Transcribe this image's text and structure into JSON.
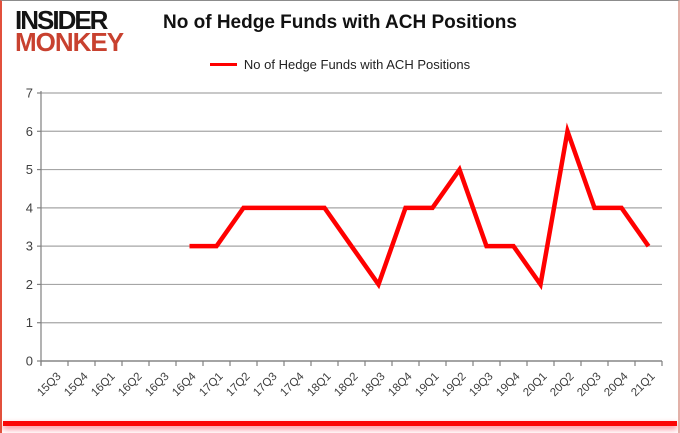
{
  "logo": {
    "line1": "INSIDER",
    "line2": "MONKEY"
  },
  "header": {
    "title": "No of Hedge Funds with ACH Positions"
  },
  "legend": {
    "label": "No of Hedge Funds with ACH Positions"
  },
  "chart_data": {
    "type": "line",
    "title": "No of Hedge Funds with ACH Positions",
    "categories": [
      "15Q3",
      "15Q4",
      "16Q1",
      "16Q2",
      "16Q3",
      "16Q4",
      "17Q1",
      "17Q2",
      "17Q3",
      "17Q4",
      "18Q1",
      "18Q2",
      "18Q3",
      "18Q4",
      "19Q1",
      "19Q2",
      "19Q3",
      "19Q4",
      "20Q1",
      "20Q2",
      "20Q3",
      "20Q4",
      "21Q1"
    ],
    "series": [
      {
        "name": "No of Hedge Funds with ACH Positions",
        "color": "#ff0000",
        "values": [
          null,
          null,
          null,
          null,
          null,
          3,
          3,
          4,
          4,
          4,
          4,
          3,
          2,
          4,
          4,
          5,
          3,
          3,
          2,
          6,
          4,
          4,
          3
        ]
      }
    ],
    "xlabel": "",
    "ylabel": "",
    "ylim": [
      0,
      7
    ],
    "yticks": [
      0,
      1,
      2,
      3,
      4,
      5,
      6,
      7
    ],
    "grid": true,
    "legend_position": "top-center"
  },
  "colors": {
    "line": "#ff0000",
    "grid": "#a6a6a6",
    "axis": "#808080",
    "tick_label": "#404040",
    "logo_black": "#141414",
    "logo_red": "#c8412f",
    "frame_red": "#e2503c",
    "bottom_bar": "#fb0707"
  }
}
